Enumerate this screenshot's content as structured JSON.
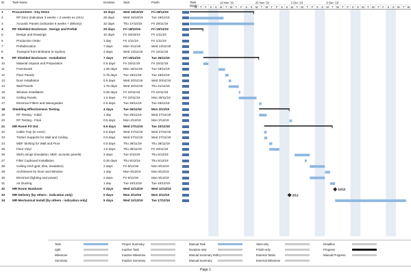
{
  "headers": {
    "id": "ID",
    "name": "Task Name",
    "duration": "Duration",
    "start": "Start",
    "finish": "Finish",
    "mode": "Task Mode"
  },
  "timescale": {
    "weeks": [
      "18 Nov '19",
      "25 Nov '19",
      "2 Dec '19",
      "9 Dec '19"
    ],
    "days": [
      "W",
      "T",
      "F",
      "S",
      "S",
      "M",
      "T",
      "W",
      "T",
      "F",
      "S",
      "S",
      "M",
      "T",
      "W",
      "T",
      "F",
      "S",
      "S",
      "M",
      "T",
      "W",
      "T",
      "F",
      "S",
      "S",
      "M",
      "T",
      "W",
      "T",
      "F",
      "S",
      "S",
      "M",
      "T",
      "W",
      "T",
      "F",
      "S",
      "S",
      "M",
      "T",
      "W"
    ]
  },
  "tasks": [
    {
      "id": "1",
      "name": "Procurement - Key Items",
      "duration": "33 days",
      "start": "Wed 16/10/19",
      "finish": "Fri 29/11/19",
      "summary": true
    },
    {
      "id": "2",
      "name": "RF Door (indicative 3 weeks + 2 weeks ex USA)",
      "duration": "25 days",
      "start": "Wed 16/10/19",
      "finish": "Tue 19/11/19"
    },
    {
      "id": "3",
      "name": "Acoustic Panels (indicative 6 weeks + delivery)",
      "duration": "32 days",
      "start": "Thu 17/10/19",
      "finish": "Fri 29/11/19"
    },
    {
      "id": "4",
      "name": "RF Shielded Enclosure - Design and Prefab",
      "duration": "20 days",
      "start": "Fri 18/10/19",
      "finish": "Fri 15/11/19",
      "summary": true
    },
    {
      "id": "5",
      "name": "Design and Drawings",
      "duration": "10 days",
      "start": "Fri 18/10/19",
      "finish": "Fri 1/11/19"
    },
    {
      "id": "6",
      "name": "Production Order",
      "duration": "1 day",
      "start": "Fri 1/11/19",
      "finish": "Fri 1/11/19"
    },
    {
      "id": "7",
      "name": "Prefabrication",
      "duration": "7 days",
      "start": "Mon 4/11/19",
      "finish": "Wed 13/11/19"
    },
    {
      "id": "8",
      "name": "Transport from Brisbane to Sydney",
      "duration": "2 days",
      "start": "Wed 13/11/19",
      "finish": "Fri 15/11/19"
    },
    {
      "id": "9",
      "name": "RF Shielded Enclosure - Installation",
      "duration": "7 days",
      "start": "Fri 15/11/19",
      "finish": "Tue 26/11/19",
      "summary": true
    },
    {
      "id": "10",
      "name": "Material Unpack and Preparation",
      "duration": "0.5 days",
      "start": "Fri 15/11/19",
      "finish": "Fri 15/11/19"
    },
    {
      "id": "11",
      "name": "Framework",
      "duration": "1.25 days",
      "start": "Mon 18/11/19",
      "finish": "Tue 19/11/19"
    },
    {
      "id": "12",
      "name": "Floor Panels",
      "duration": "0.75 days",
      "start": "Tue 19/11/19",
      "finish": "Tue 19/11/19"
    },
    {
      "id": "13",
      "name": "Door Installation",
      "duration": "0.5 days",
      "start": "Wed 20/11/19",
      "finish": "Wed 20/11/19"
    },
    {
      "id": "14",
      "name": "Wall Panels",
      "duration": "1.75 days",
      "start": "Wed 20/11/19",
      "finish": "Thu 21/11/19"
    },
    {
      "id": "15",
      "name": "Window Installation",
      "duration": "0.25 days",
      "start": "Fri 22/11/19",
      "finish": "Fri 22/11/19"
    },
    {
      "id": "16",
      "name": "Ceiling Panels",
      "duration": "1.5 days",
      "start": "Fri 22/11/19",
      "finish": "Mon 25/11/19"
    },
    {
      "id": "17",
      "name": "Electrical Filters and Waveguides",
      "duration": "0.5 days",
      "start": "Tue 26/11/19",
      "finish": "Tue 26/11/19"
    },
    {
      "id": "18",
      "name": "Shielding Effectiveness Testing",
      "duration": "4 days",
      "start": "Tue 26/11/19",
      "finish": "Mon 2/12/19",
      "summary": true
    },
    {
      "id": "19",
      "name": "RF Testing - Initial",
      "duration": "1 day",
      "start": "Tue 26/11/19",
      "finish": "Wed 27/11/19"
    },
    {
      "id": "20",
      "name": "RF Testing - Final",
      "duration": "0.5 days",
      "start": "Mon 2/12/19",
      "finish": "Mon 2/12/19"
    },
    {
      "id": "21",
      "name": "MR Room Fit Out",
      "duration": "9.5 days",
      "start": "Wed 27/11/19",
      "finish": "Tue 10/12/19",
      "summary": true
    },
    {
      "id": "22",
      "name": "Cable Tray (in room)",
      "duration": "0.5 days",
      "start": "Wed 27/11/19",
      "finish": "Wed 27/11/19"
    },
    {
      "id": "23",
      "name": "Timber Supports for Wall and Ceiling",
      "duration": "0.5 days",
      "start": "Wed 27/11/19",
      "finish": "Wed 27/11/19"
    },
    {
      "id": "24",
      "name": "MDF Skirting for Wall and Floor",
      "duration": "0.5 days",
      "start": "Thu 28/11/19",
      "finish": "Thu 28/11/19"
    },
    {
      "id": "25",
      "name": "Floor Vinyl",
      "duration": "1.5 days",
      "start": "Thu 28/11/19",
      "finish": "Fri 29/11/19"
    },
    {
      "id": "26",
      "name": "Wall Linings (insulation, MDF, acoustic panels)",
      "duration": "3 days",
      "start": "Tue 3/12/19",
      "finish": "Thu 5/12/19"
    },
    {
      "id": "27",
      "name": "Filter Cupboard Installation",
      "duration": "0.25 days",
      "start": "Thu 5/12/19",
      "finish": "Thu 5/12/19"
    },
    {
      "id": "28",
      "name": "Ceiling Grid (grid, tiles, insulation)",
      "duration": "2 days",
      "start": "Fri 6/12/19",
      "finish": "Mon 9/12/19"
    },
    {
      "id": "29",
      "name": "Architraves for Door and Window",
      "duration": "1 day",
      "start": "Mon 9/12/19",
      "finish": "Mon 9/12/19"
    },
    {
      "id": "30",
      "name": "Electrical (lighting and power)",
      "duration": "2 days",
      "start": "Fri 6/12/19",
      "finish": "Mon 9/12/19"
    },
    {
      "id": "31",
      "name": "Air Ducting",
      "duration": "1 day",
      "start": "Tue 10/12/19",
      "finish": "Tue 10/12/19"
    },
    {
      "id": "32",
      "name": "MR Room Handover",
      "duration": "0 days",
      "start": "Wed 11/12/19",
      "finish": "Wed 11/12/19",
      "summary": true
    },
    {
      "id": "33",
      "name": "MR Delivery (by others - indication only)",
      "duration": "0 days",
      "start": "Mon 2/12/19",
      "finish": "Mon 2/12/19",
      "summary": true
    },
    {
      "id": "34",
      "name": "MR Mechanical Install (by others - indication only)",
      "duration": "5 days",
      "start": "Wed 11/12/19",
      "finish": "Tue 17/12/19",
      "summary": true
    }
  ],
  "milestones": {
    "m33": "2/12",
    "m32": "11/12"
  },
  "legend": [
    [
      "Task",
      "Project Summary",
      "Manual Task",
      "Start-only",
      "Deadline"
    ],
    [
      "Split",
      "Inactive Task",
      "Duration-only",
      "Finish-only",
      "Progress"
    ],
    [
      "Milestone",
      "Inactive Milestone",
      "Manual Summary Rollup",
      "External Tasks",
      "Manual Progress"
    ],
    [
      "Summary",
      "Inactive Summary",
      "Manual Summary",
      "External Milestone",
      ""
    ]
  ],
  "footer": "Page 1",
  "colors": {
    "bar": "#8fb7e0",
    "summary": "#222",
    "grid": "#bbb"
  }
}
